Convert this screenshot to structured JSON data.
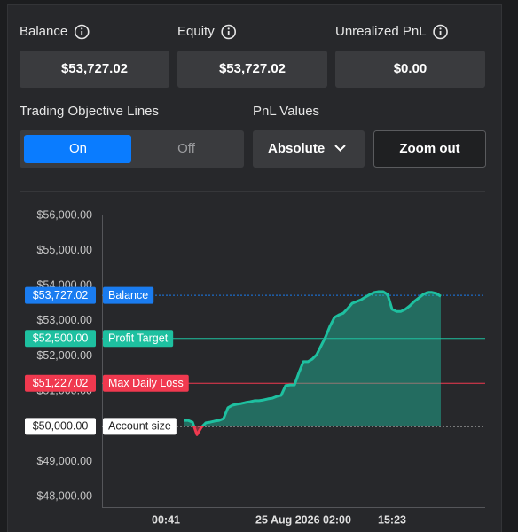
{
  "stats": [
    {
      "label": "Balance",
      "value": "$53,727.02"
    },
    {
      "label": "Equity",
      "value": "$53,727.02"
    },
    {
      "label": "Unrealized PnL",
      "value": "$0.00"
    }
  ],
  "objective_lines": {
    "label": "Trading Objective Lines",
    "options": [
      "On",
      "Off"
    ],
    "selected": 0
  },
  "pnl_values": {
    "label": "PnL Values",
    "selected": "Absolute"
  },
  "zoom_button": "Zoom out",
  "chart_data": {
    "type": "area",
    "categories": [
      null,
      null,
      null,
      null,
      null,
      null,
      null,
      null,
      null,
      null,
      null,
      null,
      null,
      null,
      "00:41",
      null,
      null,
      null,
      null,
      null,
      null,
      null,
      null,
      null,
      null,
      null,
      null,
      null,
      null,
      null,
      null,
      null,
      null,
      null,
      null,
      null,
      null,
      null,
      null,
      null,
      null,
      null,
      null,
      null,
      null,
      "25 Aug 2026 02:00",
      null,
      null,
      null,
      null,
      null,
      null,
      null,
      null,
      null,
      null,
      null,
      null,
      null,
      null,
      null,
      null,
      null,
      null,
      null,
      "15:23",
      null,
      null,
      null,
      null,
      null,
      null,
      null,
      null,
      null,
      null,
      null,
      null,
      null,
      null,
      null,
      null,
      null,
      null,
      null,
      null,
      null
    ],
    "series": [
      {
        "color": "#1ec0a0",
        "negative_color": "#f0394f",
        "values": [
          null,
          null,
          null,
          null,
          null,
          null,
          null,
          null,
          null,
          null,
          null,
          null,
          null,
          null,
          null,
          null,
          null,
          null,
          50170,
          50170,
          50120,
          49760,
          49970,
          50100,
          50120,
          50150,
          50170,
          50220,
          50530,
          50600,
          50630,
          50650,
          50680,
          50700,
          50730,
          50730,
          50750,
          50780,
          50800,
          50850,
          50880,
          51160,
          51180,
          51180,
          51530,
          51840,
          51840,
          51910,
          52040,
          52290,
          52540,
          52850,
          53100,
          53170,
          53220,
          53350,
          53500,
          53550,
          53600,
          53680,
          53750,
          53810,
          53830,
          53830,
          53750,
          53330,
          53270,
          53270,
          53330,
          53430,
          53550,
          53650,
          53750,
          53810,
          53810,
          53780,
          53700,
          null,
          null,
          null,
          null,
          null,
          null,
          null,
          null,
          null,
          null
        ]
      }
    ],
    "levels": [
      {
        "name": "Balance",
        "value": 53727.02,
        "label": "$53,727.02",
        "color": "#1a7cf0",
        "dashed": true
      },
      {
        "name": "Profit Target",
        "value": 52500,
        "label": "$52,500.00",
        "color": "#1ec0a0",
        "dashed": false
      },
      {
        "name": "Max Daily Loss",
        "value": 51227.02,
        "label": "$51,227.02",
        "color": "#f0394f",
        "dashed": false
      },
      {
        "name": "Account size",
        "value": 50000,
        "label": "$50,000.00",
        "color": "#ffffff",
        "dashed": true
      }
    ],
    "ylim": [
      47700,
      56000
    ],
    "yticks": [
      {
        "value": 48000,
        "label": "$48,000.00"
      },
      {
        "value": 49000,
        "label": "$49,000.00"
      },
      {
        "value": 50000,
        "label": "$50,000.00"
      },
      {
        "value": 51000,
        "label": "$51,000.00"
      },
      {
        "value": 52000,
        "label": "$52,000.00"
      },
      {
        "value": 53000,
        "label": "$53,000.00"
      },
      {
        "value": 54000,
        "label": "$54,000.00"
      },
      {
        "value": 55000,
        "label": "$55,000.00"
      },
      {
        "value": 56000,
        "label": "$56,000.00"
      }
    ],
    "grid": false
  }
}
